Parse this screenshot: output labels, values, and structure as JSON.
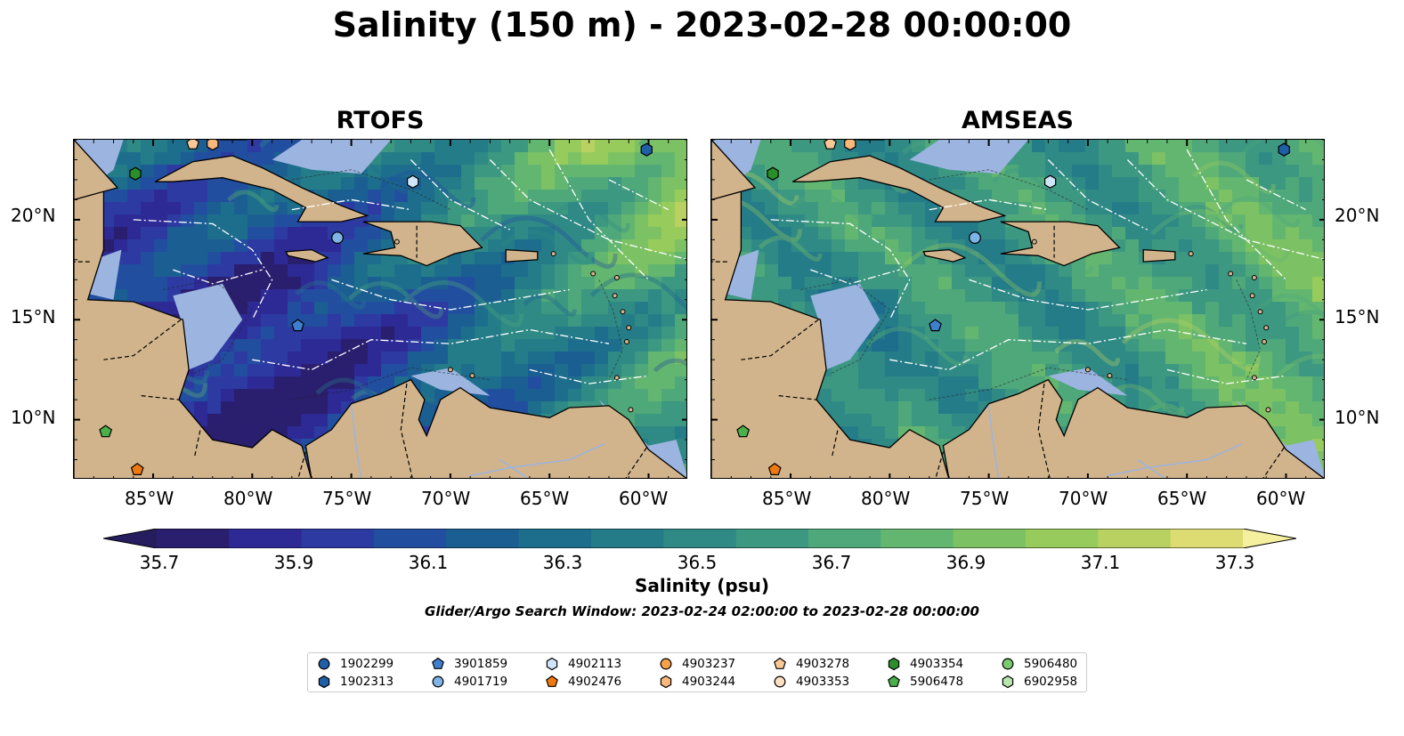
{
  "title": "Salinity (150 m) - 2023-02-28 00:00:00",
  "panels": [
    {
      "title": "RTOFS",
      "palette_bias": "low"
    },
    {
      "title": "AMSEAS",
      "palette_bias": "high"
    }
  ],
  "axes": {
    "lon_labels": [
      "85°W",
      "80°W",
      "75°W",
      "70°W",
      "65°W",
      "60°W"
    ],
    "lat_labels": [
      "20°N",
      "15°N",
      "10°N"
    ],
    "lon_range": [
      -89,
      -58
    ],
    "lat_range": [
      7,
      24
    ]
  },
  "colorbar": {
    "label": "Salinity (psu)",
    "ticks": [
      "35.7",
      "35.9",
      "36.1",
      "36.3",
      "36.5",
      "36.7",
      "36.9",
      "37.1",
      "37.3"
    ],
    "colors": [
      "#2a1e6e",
      "#2d2a96",
      "#2c3aa2",
      "#224ea0",
      "#1b5f92",
      "#1d6e8c",
      "#257c89",
      "#2f8a86",
      "#3c9881",
      "#4fa87a",
      "#63b670",
      "#7cc264",
      "#97cb5c",
      "#b9d160",
      "#dcdc72"
    ],
    "extend_low_color": "#261d5e",
    "extend_high_color": "#f5f0a0"
  },
  "search_window": "Glider/Argo Search Window: 2023-02-24 02:00:00 to 2023-02-28 00:00:00",
  "map_colors": {
    "land": "#d2b48c",
    "shelf": "#9bb4e0"
  },
  "legend": [
    {
      "id": "1902299",
      "marker": "circle",
      "color": "#1f5fa8"
    },
    {
      "id": "1902313",
      "marker": "hexagon",
      "color": "#1f5fa8"
    },
    {
      "id": "3901859",
      "marker": "pentagon",
      "color": "#3f7fcf"
    },
    {
      "id": "4901719",
      "marker": "circle",
      "color": "#7fb5e6"
    },
    {
      "id": "4902113",
      "marker": "hexagon",
      "color": "#cfe6fa"
    },
    {
      "id": "4902476",
      "marker": "pentagon",
      "color": "#f07810"
    },
    {
      "id": "4903237",
      "marker": "circle",
      "color": "#f7a04a"
    },
    {
      "id": "4903244",
      "marker": "hexagon",
      "color": "#f9b87a"
    },
    {
      "id": "4903278",
      "marker": "pentagon",
      "color": "#f9c896"
    },
    {
      "id": "4903353",
      "marker": "circle",
      "color": "#fde0c2"
    },
    {
      "id": "4903354",
      "marker": "hexagon",
      "color": "#2a8f2a"
    },
    {
      "id": "5906478",
      "marker": "pentagon",
      "color": "#4ab04a"
    },
    {
      "id": "5906480",
      "marker": "circle",
      "color": "#79cc6e"
    },
    {
      "id": "6902958",
      "marker": "hexagon",
      "color": "#b8e6ae"
    }
  ],
  "floats_on_map": [
    {
      "id": "5906478",
      "lon": -87.4,
      "lat": 9.4
    },
    {
      "id": "4902476",
      "lon": -85.8,
      "lat": 7.5
    },
    {
      "id": "4903354",
      "lon": -85.9,
      "lat": 22.3
    },
    {
      "id": "4901719",
      "lon": -75.7,
      "lat": 19.1
    },
    {
      "id": "3901859",
      "lon": -77.7,
      "lat": 14.7
    },
    {
      "id": "4902113",
      "lon": -71.9,
      "lat": 21.9
    },
    {
      "id": "1902313",
      "lon": -60.1,
      "lat": 23.5
    },
    {
      "id": "4903244",
      "lon": -82.0,
      "lat": 23.8
    },
    {
      "id": "4903278",
      "lon": -83.0,
      "lat": 23.8
    }
  ]
}
